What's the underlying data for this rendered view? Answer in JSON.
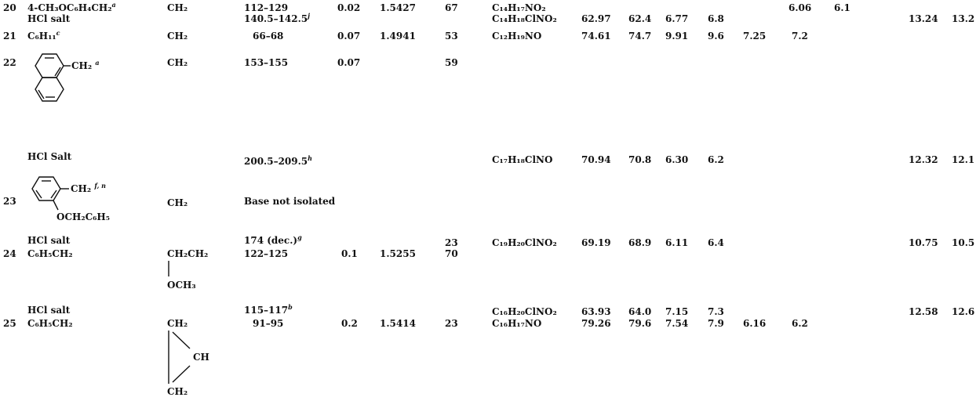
{
  "rows": [
    {
      "no": "20",
      "substituent": "4-CH₃OC₆H₄CH₂",
      "sub_note": "a",
      "r": "CH₂",
      "bp": "112–129",
      "pressure": "0.02",
      "nd": "1.5427",
      "yield": "67",
      "formula": "C₁₄H₁₇NO₂",
      "n_calcd": "6.06",
      "n_found": "6.1"
    },
    {
      "no": "",
      "substituent": "HCl salt",
      "r": "",
      "bp": "140.5–142.5",
      "bp_note": "j",
      "formula": "C₁₄H₁₈ClNO₂",
      "c_calcd": "62.97",
      "c_found": "62.4",
      "h_calcd": "6.77",
      "h_found": "6.8",
      "cl_calcd": "13.24",
      "cl_found": "13.2"
    },
    {
      "no": "21",
      "substituent": "C₆H₁₁",
      "sub_note": "c",
      "r": "CH₂",
      "bp": "66–68",
      "pressure": "0.07",
      "nd": "1.4941",
      "yield": "53",
      "formula": "C₁₂H₁₉NO",
      "c_calcd": "74.61",
      "c_found": "74.7",
      "h_calcd": "9.91",
      "h_found": "9.6",
      "n_calcd": "7.25",
      "n_found": "7.2"
    },
    {
      "no": "22",
      "sub_struct_label": "CH₂",
      "sub_note": "a",
      "r": "CH₂",
      "bp": "153–155",
      "pressure": "0.07",
      "yield": "59"
    },
    {
      "no": "",
      "substituent": "HCl Salt",
      "bp": "200.5–209.5",
      "bp_note": "h",
      "formula": "C₁₇H₁₈ClNO",
      "c_calcd": "70.94",
      "c_found": "70.8",
      "h_calcd": "6.30",
      "h_found": "6.2",
      "cl_calcd": "12.32",
      "cl_found": "12.1"
    },
    {
      "no": "23",
      "sub_struct_label": "CH₂",
      "sub_note": "f, n",
      "sub_struct_label2": "OCH₂C₆H₅",
      "r": "CH₂",
      "bp": "Base not isolated"
    },
    {
      "no": "",
      "substituent": "HCl salt",
      "bp": "174 (dec.)",
      "bp_note": "g",
      "yield": "23",
      "formula": "C₁₉H₂₀ClNO₂",
      "c_calcd": "69.19",
      "c_found": "68.9",
      "h_calcd": "6.11",
      "h_found": "6.4",
      "cl_calcd": "10.75",
      "cl_found": "10.5"
    },
    {
      "no": "24",
      "substituent": "C₆H₅CH₂",
      "r": "CH₂CH₂",
      "r2": "OCH₃",
      "bp": "122–125",
      "pressure": "0.1",
      "nd": "1.5255",
      "yield": "70"
    },
    {
      "no": "",
      "substituent": "HCl salt",
      "bp": "115–117",
      "bp_note": "b",
      "formula": "C₁₆H₂₀ClNO₂",
      "c_calcd": "63.93",
      "c_found": "64.0",
      "h_calcd": "7.15",
      "h_found": "7.3",
      "cl_calcd": "12.58",
      "cl_found": "12.6"
    },
    {
      "no": "25",
      "substituent": "C₆H₅CH₂",
      "r": "CH₂",
      "r2": "CH",
      "r3": "CH₂",
      "bp": "91–95",
      "pressure": "0.2",
      "nd": "1.5414",
      "yield": "23",
      "formula": "C₁₆H₁₇NO",
      "c_calcd": "79.26",
      "c_found": "79.6",
      "h_calcd": "7.54",
      "h_found": "7.9",
      "n_calcd": "6.16",
      "n_found": "6.2"
    }
  ]
}
